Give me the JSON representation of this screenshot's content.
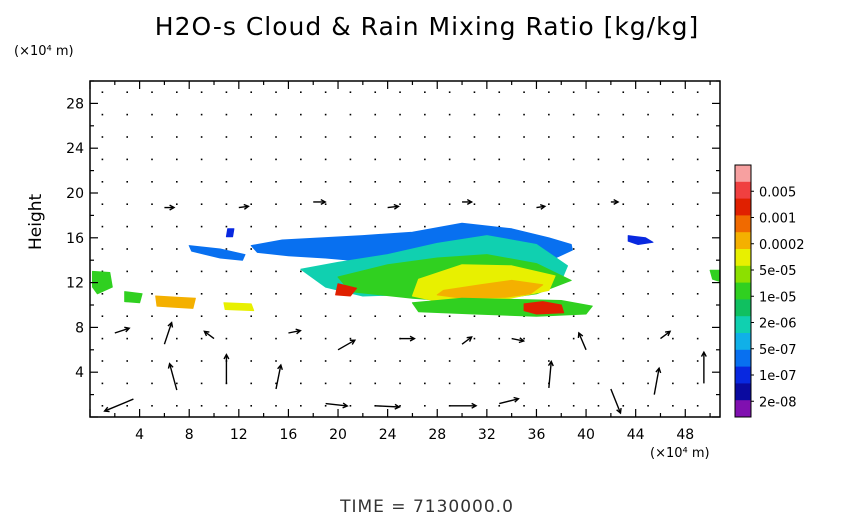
{
  "chart_data": {
    "type": "heatmap",
    "title": "H2O-s Cloud & Rain Mixing Ratio [kg/kg]",
    "ylabel": "Height",
    "y_unit": "(×10⁴ m)",
    "x_unit": "(×10⁴ m)",
    "x_ticks": [
      4,
      8,
      12,
      16,
      20,
      24,
      28,
      32,
      36,
      40,
      44,
      48
    ],
    "y_ticks": [
      4,
      8,
      12,
      16,
      20,
      24,
      28
    ],
    "xlim": [
      0,
      50.8
    ],
    "ylim": [
      0,
      30
    ],
    "colorbar": {
      "labels": [
        "0.005",
        "0.001",
        "0.0002",
        "5e-05",
        "1e-05",
        "2e-06",
        "5e-07",
        "1e-07",
        "2e-08"
      ],
      "colors": [
        "#f7a0a0",
        "#f04040",
        "#e02000",
        "#f06a00",
        "#f4b000",
        "#e8f000",
        "#8ce000",
        "#30d020",
        "#10c060",
        "#10d0b0",
        "#10b0e8",
        "#0870f0",
        "#0828e0",
        "#0a0aa0",
        "#8010b0"
      ]
    },
    "series": [
      {
        "field": "mixing_ratio_regions",
        "regions": [
          {
            "x": [
              13.0,
              15.5,
              22.0,
              26.0,
              30.0,
              34.0,
              37.0,
              38.8,
              38.9,
              37.5,
              35.0,
              32.0,
              29.0,
              27.0,
              25.0,
              22.0,
              19.0,
              16.0,
              13.5
            ],
            "y": [
              15.3,
              15.8,
              16.2,
              16.5,
              17.3,
              16.8,
              16.0,
              15.4,
              14.9,
              14.2,
              13.9,
              14.2,
              14.0,
              13.8,
              14.1,
              13.9,
              14.2,
              14.4,
              14.7
            ],
            "level": 2e-07
          },
          {
            "x": [
              17.0,
              20.0,
              24.0,
              28.0,
              32.0,
              36.0,
              38.5,
              38.0,
              35.0,
              31.0,
              28.0,
              25.0,
              22.0,
              19.0
            ],
            "y": [
              13.2,
              13.8,
              14.5,
              15.5,
              16.2,
              15.4,
              13.5,
              12.2,
              11.8,
              11.0,
              10.6,
              10.9,
              10.8,
              11.6
            ],
            "level": 1e-06
          },
          {
            "x": [
              20.0,
              24.0,
              28.0,
              32.0,
              36.0,
              38.8,
              36.0,
              31.0,
              26.0,
              21.0
            ],
            "y": [
              12.5,
              13.6,
              14.2,
              14.5,
              13.7,
              12.2,
              11.0,
              10.2,
              10.6,
              11.2
            ],
            "level": 1e-05
          },
          {
            "x": [
              26.5,
              30.0,
              34.0,
              37.5,
              37.0,
              33.0,
              29.0,
              26.0
            ],
            "y": [
              12.3,
              13.6,
              13.5,
              12.6,
              11.3,
              10.4,
              10.1,
              10.8
            ],
            "level": 5e-05
          },
          {
            "x": [
              28.5,
              31.5,
              34.0,
              36.5,
              35.5,
              33.5,
              30.0,
              28.0
            ],
            "y": [
              11.3,
              11.8,
              12.2,
              11.8,
              11.0,
              10.7,
              10.6,
              10.9
            ],
            "level": 0.0003
          },
          {
            "x": [
              20.0,
              21.5,
              21.0,
              19.8
            ],
            "y": [
              11.9,
              11.5,
              10.8,
              10.9
            ],
            "level": 0.001
          },
          {
            "x": [
              8.0,
              10.5,
              12.5,
              12.3,
              10.5,
              8.2
            ],
            "y": [
              15.3,
              15.0,
              14.5,
              14.0,
              14.2,
              14.8
            ],
            "level": 2e-07
          },
          {
            "x": [
              0.2,
              1.6,
              1.8,
              0.6,
              0.2
            ],
            "y": [
              13.0,
              12.9,
              11.6,
              11.0,
              11.6
            ],
            "level": 1e-05
          },
          {
            "x": [
              2.8,
              4.2,
              4.0,
              2.8
            ],
            "y": [
              11.2,
              11.0,
              10.2,
              10.3
            ],
            "level": 1e-05
          },
          {
            "x": [
              5.3,
              7.0,
              8.5,
              8.3,
              6.8,
              5.4
            ],
            "y": [
              10.8,
              10.7,
              10.6,
              9.7,
              9.8,
              9.9
            ],
            "level": 0.0003
          },
          {
            "x": [
              10.8,
              13.0,
              13.2,
              10.9
            ],
            "y": [
              10.2,
              10.1,
              9.5,
              9.6
            ],
            "level": 5e-05
          },
          {
            "x": [
              26.0,
              30.0,
              34.0,
              38.0,
              40.5,
              40.0,
              36.0,
              31.0,
              26.5
            ],
            "y": [
              10.2,
              10.6,
              10.5,
              10.4,
              9.9,
              9.2,
              9.0,
              9.2,
              9.4
            ],
            "level": 1e-05
          },
          {
            "x": [
              35.0,
              36.5,
              38.0,
              38.2,
              36.0,
              35.0
            ],
            "y": [
              10.1,
              10.3,
              10.0,
              9.3,
              9.2,
              9.5
            ],
            "level": 0.001
          },
          {
            "x": [
              43.4,
              44.8,
              45.4,
              44.2,
              43.4
            ],
            "y": [
              16.2,
              16.0,
              15.6,
              15.4,
              15.7
            ],
            "level": 1e-07
          },
          {
            "x": [
              11.1,
              11.6,
              11.5,
              11.0
            ],
            "y": [
              16.8,
              16.8,
              16.1,
              16.1
            ],
            "level": 1e-07
          },
          {
            "x": [
              50.0,
              50.8,
              50.8,
              50.2
            ],
            "y": [
              13.1,
              13.1,
              12.1,
              12.3
            ],
            "level": 1e-05
          }
        ]
      },
      {
        "field": "wind_vectors",
        "arrows": [
          {
            "x": 3.5,
            "y": 1.6,
            "u": -2.4,
            "v": -1.0
          },
          {
            "x": 7.0,
            "y": 2.4,
            "u": -0.6,
            "v": 2.2
          },
          {
            "x": 11.0,
            "y": 3.0,
            "u": 0.0,
            "v": 2.4
          },
          {
            "x": 15.0,
            "y": 2.5,
            "u": 0.4,
            "v": 2.0
          },
          {
            "x": 19.0,
            "y": 1.2,
            "u": 1.8,
            "v": -0.2
          },
          {
            "x": 23.0,
            "y": 1.0,
            "u": 2.0,
            "v": -0.1
          },
          {
            "x": 29.0,
            "y": 1.0,
            "u": 2.2,
            "v": 0.0
          },
          {
            "x": 33.0,
            "y": 1.2,
            "u": 1.6,
            "v": 0.4
          },
          {
            "x": 37.0,
            "y": 2.6,
            "u": 0.2,
            "v": 2.2
          },
          {
            "x": 42.0,
            "y": 2.5,
            "u": 0.8,
            "v": -2.0
          },
          {
            "x": 45.5,
            "y": 2.0,
            "u": 0.4,
            "v": 2.2
          },
          {
            "x": 49.5,
            "y": 3.0,
            "u": 0.0,
            "v": 2.6
          },
          {
            "x": 2.0,
            "y": 7.5,
            "u": 1.2,
            "v": 0.4
          },
          {
            "x": 6.0,
            "y": 6.5,
            "u": 0.6,
            "v": 1.8
          },
          {
            "x": 10.0,
            "y": 7.0,
            "u": -0.8,
            "v": 0.6
          },
          {
            "x": 16.0,
            "y": 7.5,
            "u": 1.0,
            "v": 0.2
          },
          {
            "x": 20.0,
            "y": 6.0,
            "u": 1.4,
            "v": 0.8
          },
          {
            "x": 25.0,
            "y": 7.0,
            "u": 1.2,
            "v": 0.0
          },
          {
            "x": 30.0,
            "y": 6.5,
            "u": 0.8,
            "v": 0.6
          },
          {
            "x": 34.0,
            "y": 7.0,
            "u": 1.0,
            "v": -0.2
          },
          {
            "x": 40.0,
            "y": 6.0,
            "u": -0.6,
            "v": 1.4
          },
          {
            "x": 46.0,
            "y": 7.0,
            "u": 0.8,
            "v": 0.6
          },
          {
            "x": 6.0,
            "y": 18.7,
            "u": 0.8,
            "v": 0.0
          },
          {
            "x": 12.0,
            "y": 18.7,
            "u": 0.8,
            "v": 0.1
          },
          {
            "x": 18.0,
            "y": 19.2,
            "u": 1.0,
            "v": 0.0
          },
          {
            "x": 24.0,
            "y": 18.7,
            "u": 0.9,
            "v": 0.1
          },
          {
            "x": 30.0,
            "y": 19.2,
            "u": 0.8,
            "v": 0.0
          },
          {
            "x": 36.0,
            "y": 18.7,
            "u": 0.7,
            "v": 0.1
          },
          {
            "x": 42.0,
            "y": 19.2,
            "u": 0.6,
            "v": 0.0
          }
        ]
      }
    ]
  },
  "footer": {
    "time_label": "TIME = 7130000.0"
  }
}
